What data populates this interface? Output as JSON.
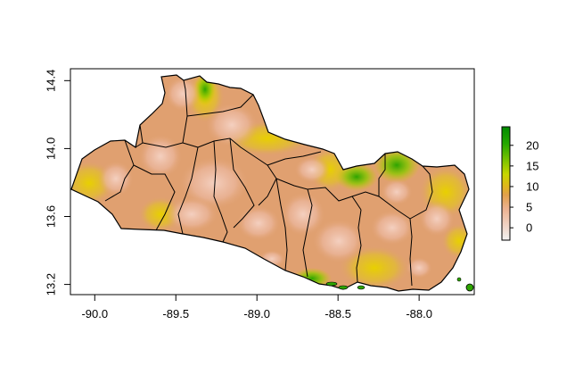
{
  "map": {
    "x_axis": {
      "range": [
        -90.15,
        -87.66
      ],
      "ticks": [
        {
          "value": -90.0,
          "label": "-90.0"
        },
        {
          "value": -89.5,
          "label": "-89.5"
        },
        {
          "value": -89.0,
          "label": "-89.0"
        },
        {
          "value": -88.5,
          "label": "-88.5"
        },
        {
          "value": -88.0,
          "label": "-88.0"
        }
      ]
    },
    "y_axis": {
      "range": [
        13.14,
        14.47
      ],
      "ticks": [
        {
          "value": 13.2,
          "label": "13.2"
        },
        {
          "value": 13.6,
          "label": "13.6"
        },
        {
          "value": 14.0,
          "label": "14.0"
        },
        {
          "value": 14.4,
          "label": "14.4"
        }
      ]
    },
    "legend": {
      "range": [
        -3,
        24.5
      ],
      "ticks": [
        {
          "value": 0,
          "label": "0"
        },
        {
          "value": 5,
          "label": "5"
        },
        {
          "value": 10,
          "label": "10"
        },
        {
          "value": 15,
          "label": "15"
        },
        {
          "value": 20,
          "label": "20"
        }
      ],
      "colors": [
        "#f2f2f2",
        "#ecb18f",
        "#e1a04a",
        "#dfb81a",
        "#c8d600",
        "#7ec400",
        "#25a800",
        "#008a00"
      ]
    },
    "colors": {
      "land_base": "#e0a070",
      "land_light": "#efc0a8",
      "yellow": "#e6d000",
      "green": "#3aa800",
      "border": "#000000"
    }
  }
}
